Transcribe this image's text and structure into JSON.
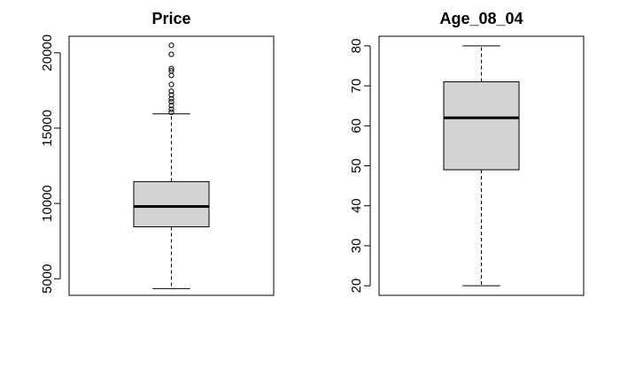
{
  "chart_data": [
    {
      "type": "boxplot",
      "title": "Price",
      "ylim": [
        3900,
        21100
      ],
      "yticks": [
        5000,
        10000,
        15000,
        20000
      ],
      "ytick_labels": [
        "5000",
        "10000",
        "15000",
        "20000"
      ],
      "stats": {
        "whisker_low": 4350,
        "q1": 8450,
        "median": 9800,
        "q3": 11450,
        "whisker_high": 15950
      },
      "outliers": [
        16050,
        16250,
        16500,
        16750,
        16950,
        17200,
        17450,
        17900,
        18500,
        18800,
        18950,
        19900,
        20500
      ],
      "box_color": "#d3d3d3"
    },
    {
      "type": "boxplot",
      "title": "Age_08_04",
      "ylim": [
        17.6,
        82.4
      ],
      "yticks": [
        20,
        30,
        40,
        50,
        60,
        70,
        80
      ],
      "ytick_labels": [
        "20",
        "30",
        "40",
        "50",
        "60",
        "70",
        "80"
      ],
      "stats": {
        "whisker_low": 20,
        "q1": 49,
        "median": 62,
        "q3": 71,
        "whisker_high": 80
      },
      "outliers": [],
      "box_color": "#d3d3d3"
    }
  ]
}
